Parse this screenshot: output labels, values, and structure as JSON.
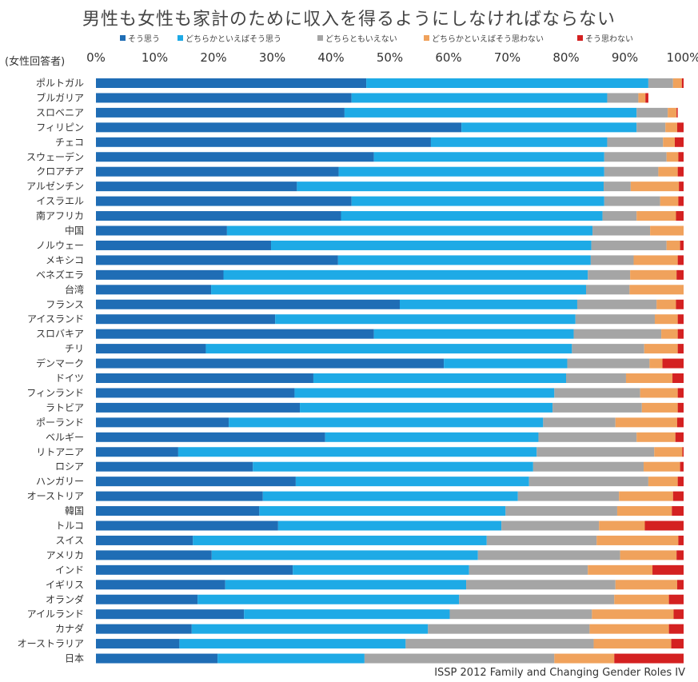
{
  "chart_data": {
    "type": "bar",
    "stacked": true,
    "orientation": "horizontal",
    "title": "男性も女性も家計のために収入を得るようにしなければならない",
    "subtitle": "(女性回答者)",
    "source": "ISSP 2012 Family and Changing Gender Roles IV",
    "xlim": [
      0,
      100
    ],
    "x_ticks": [
      "0%",
      "10%",
      "20%",
      "30%",
      "40%",
      "50%",
      "60%",
      "70%",
      "80%",
      "90%",
      "100%"
    ],
    "grid": false,
    "legend_position": "top",
    "categories": [
      "ポルトガル",
      "ブルガリア",
      "スロベニア",
      "フィリピン",
      "チェコ",
      "スウェーデン",
      "クロアチア",
      "アルゼンチン",
      "イスラエル",
      "南アフリカ",
      "中国",
      "ノルウェー",
      "メキシコ",
      "ベネズエラ",
      "台湾",
      "フランス",
      "アイスランド",
      "スロバキア",
      "チリ",
      "デンマーク",
      "ドイツ",
      "フィンランド",
      "ラトビア",
      "ポーランド",
      "ベルギー",
      "リトアニア",
      "ロシア",
      "ハンガリー",
      "オーストリア",
      "韓国",
      "トルコ",
      "スイス",
      "アメリカ",
      "インド",
      "イギリス",
      "オランダ",
      "アイルランド",
      "カナダ",
      "オーストラリア",
      "日本"
    ],
    "series": [
      {
        "name": "そう思う",
        "color": "#1f6db5",
        "values": [
          46,
          43.5,
          42.3,
          62.2,
          57.0,
          47.3,
          41.3,
          34.2,
          43.5,
          41.7,
          22.3,
          29.8,
          41.2,
          21.7,
          19.6,
          51.7,
          30.5,
          47.3,
          18.7,
          59.2,
          37.0,
          33.8,
          34.7,
          22.6,
          39.0,
          14.0,
          26.7,
          34.0,
          28.4,
          27.8,
          31.0,
          16.5,
          19.7,
          33.5,
          22.0,
          17.3,
          25.2,
          16.3,
          14.2,
          20.7
        ]
      },
      {
        "name": "どちらかといえばそう思う",
        "color": "#1eaae6",
        "values": [
          48,
          43.5,
          49.7,
          29.8,
          30.0,
          39.2,
          45.2,
          52.2,
          43.0,
          44.5,
          62.2,
          54.5,
          43.0,
          62.0,
          63.8,
          30.2,
          51.1,
          34.0,
          62.3,
          21.0,
          43.0,
          44.2,
          43.0,
          53.5,
          36.3,
          61.0,
          47.7,
          39.7,
          43.4,
          41.9,
          38.0,
          50.0,
          45.3,
          30.0,
          41.0,
          44.5,
          35.0,
          40.2,
          38.5,
          25.0
        ]
      },
      {
        "name": "どちらともいえない",
        "color": "#a5a5a5",
        "values": [
          4.2,
          5.3,
          5.3,
          4.9,
          9.5,
          10.6,
          9.2,
          4.6,
          9.5,
          5.8,
          9.8,
          12.8,
          7.3,
          7.2,
          7.4,
          13.5,
          13.5,
          14.9,
          12.3,
          14.0,
          10.2,
          14.6,
          15.2,
          12.3,
          16.7,
          20.0,
          18.8,
          20.3,
          17.2,
          19.0,
          16.6,
          18.7,
          24.2,
          20.2,
          25.4,
          26.4,
          24.2,
          27.5,
          32.0,
          32.3
        ]
      },
      {
        "name": "どちらかといえばそう思わない",
        "color": "#f0a25c",
        "values": [
          1.5,
          1.2,
          1.5,
          2.0,
          2.0,
          2.0,
          3.3,
          8.2,
          3.1,
          6.7,
          5.7,
          2.3,
          7.5,
          7.9,
          9.2,
          3.3,
          3.9,
          2.8,
          5.7,
          2.2,
          7.9,
          6.4,
          6.1,
          10.5,
          6.6,
          4.8,
          6.2,
          5.0,
          9.2,
          9.3,
          7.8,
          13.9,
          9.6,
          11.0,
          10.5,
          9.3,
          13.9,
          13.5,
          13.2,
          10.2
        ]
      },
      {
        "name": "そう思わない",
        "color": "#d42121",
        "values": [
          0.3,
          0.5,
          0.2,
          1.1,
          1.5,
          0.9,
          1.0,
          0.8,
          0.9,
          1.3,
          0,
          0.6,
          1.0,
          1.2,
          0,
          1.3,
          1.0,
          1.0,
          1.0,
          3.6,
          1.9,
          1.0,
          1.0,
          1.1,
          1.4,
          0.2,
          0.6,
          1.0,
          1.8,
          2.0,
          6.6,
          0.9,
          1.2,
          5.3,
          1.1,
          2.5,
          1.7,
          2.5,
          2.1,
          11.8
        ]
      }
    ]
  }
}
